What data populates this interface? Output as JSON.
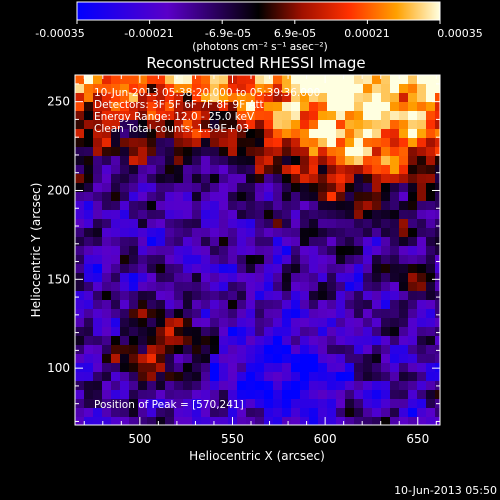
{
  "colorbar": {
    "ticks": [
      "-0.00035",
      "-0.00021",
      "-6.9e-05",
      "6.9e-05",
      "0.00021",
      "0.00035"
    ],
    "unit_label": "(photons cm⁻² s⁻¹ asec⁻²)"
  },
  "title": "Reconstructed RHESSI Image",
  "info": {
    "time_range": "10-Jun-2013 05:38:20.000 to 05:39:36.000",
    "detectors": "Detectors: 3F 5F 6F 7F 8F 9F Att",
    "energy_range": "Energy Range: 12.0 - 25.0 keV",
    "counts": "Clean    Total counts: 1.59E+03"
  },
  "peak_label": "Position of Peak = [570,241]",
  "x_axis": {
    "label": "Heliocentric X (arcsec)",
    "ticks": [
      500,
      550,
      600,
      650
    ],
    "range": [
      465,
      662
    ]
  },
  "y_axis": {
    "label": "Heliocentric Y (arcsec)",
    "ticks": [
      100,
      150,
      200,
      250
    ],
    "range": [
      68,
      265
    ]
  },
  "footer_timestamp": "10-Jun-2013 05:50",
  "colors": {
    "background": "#000000",
    "foreground": "#ffffff"
  }
}
